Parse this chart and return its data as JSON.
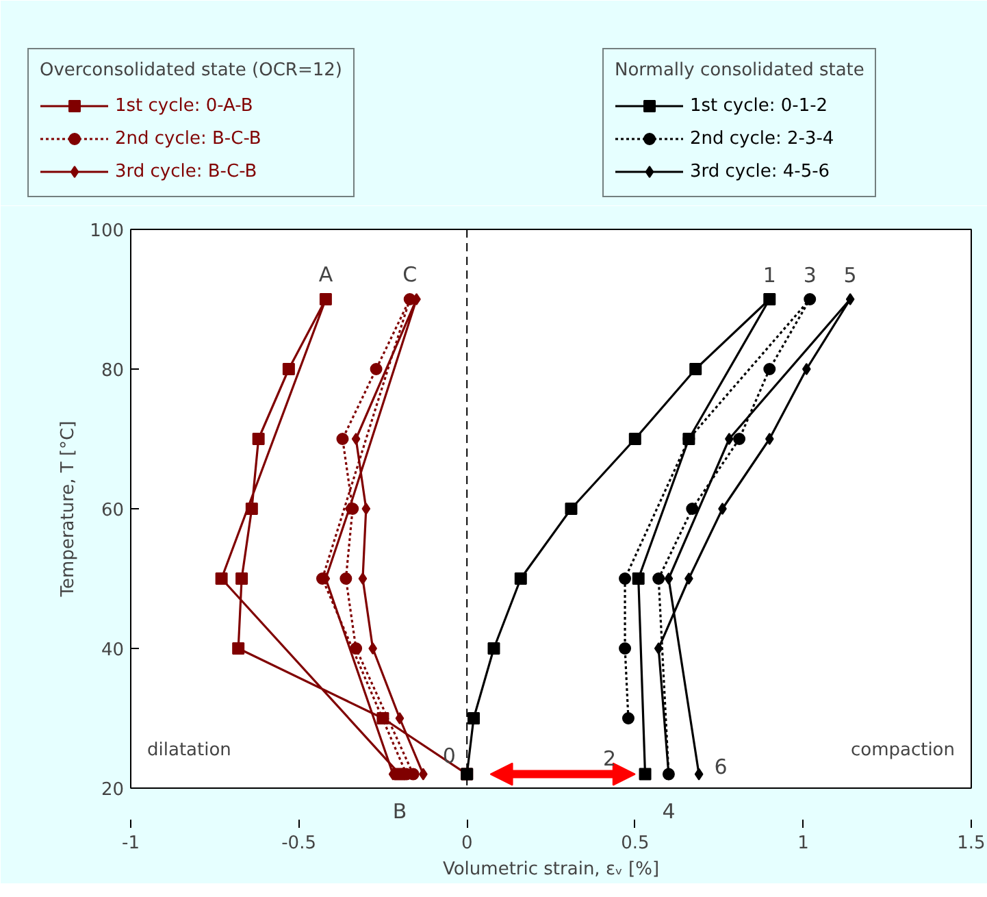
{
  "chart_data": {
    "type": "line",
    "xlabel": "Volumetric strain, εᵥ [%]",
    "ylabel": "Temperature, T [°C]",
    "xlim": [
      -1,
      1.5
    ],
    "ylim": [
      20,
      100
    ],
    "xticks": [
      -1,
      -0.5,
      0,
      0.5,
      1,
      1.5
    ],
    "yticks": [
      20,
      40,
      60,
      80,
      100
    ],
    "grid": false,
    "legend": "top",
    "legend_title": [
      "Overconsolidated state (OCR=12)",
      "Normally consolidated state"
    ],
    "ref_lines": [
      {
        "axis": "x",
        "value": 0,
        "line_style": "dashed",
        "color": "#000000"
      }
    ],
    "series": [
      {
        "name": "1st cycle: 0-A-B",
        "color": "#800000",
        "marker": "square",
        "line_style": "solid",
        "x": [
          0,
          -0.25,
          -0.68,
          -0.67,
          -0.64,
          -0.62,
          -0.53,
          -0.42,
          -0.73,
          -0.2
        ],
        "values": [
          22,
          30,
          40,
          50,
          60,
          70,
          80,
          90,
          50,
          22
        ]
      },
      {
        "name": "2nd cycle: B-C-B",
        "color": "#800000",
        "marker": "circle",
        "line_style": "dotted",
        "x": [
          -0.16,
          -0.33,
          -0.36,
          -0.34,
          -0.37,
          -0.27,
          -0.17,
          -0.43,
          -0.18
        ],
        "values": [
          22,
          40,
          50,
          60,
          70,
          80,
          90,
          50,
          22
        ]
      },
      {
        "name": "3rd cycle: B-C-B",
        "color": "#800000",
        "marker": "diamond",
        "line_style": "solid",
        "x": [
          -0.13,
          -0.2,
          -0.28,
          -0.31,
          -0.3,
          -0.33,
          -0.15,
          -0.35,
          -0.42,
          -0.22
        ],
        "values": [
          22,
          30,
          40,
          50,
          60,
          70,
          90,
          60,
          50,
          22
        ]
      },
      {
        "name": "1st cycle: 0-1-2",
        "color": "#000000",
        "marker": "square",
        "line_style": "solid",
        "x": [
          0,
          0.02,
          0.08,
          0.16,
          0.31,
          0.5,
          0.68,
          0.9,
          0.66,
          0.51,
          0.53
        ],
        "values": [
          22,
          30,
          40,
          50,
          60,
          70,
          80,
          90,
          70,
          50,
          22
        ]
      },
      {
        "name": "2nd cycle: 2-3-4",
        "color": "#000000",
        "marker": "circle",
        "line_style": "dotted",
        "x": [
          0.48,
          0.47,
          0.47,
          0.66,
          1.02,
          0.9,
          0.81,
          0.67,
          0.57,
          0.6
        ],
        "values": [
          30,
          40,
          50,
          70,
          90,
          80,
          70,
          60,
          50,
          22
        ]
      },
      {
        "name": "3rd cycle: 4-5-6",
        "color": "#000000",
        "marker": "diamond",
        "line_style": "solid",
        "x": [
          0.6,
          0.57,
          0.66,
          0.76,
          0.9,
          1.01,
          1.14,
          0.78,
          0.6,
          0.69
        ],
        "values": [
          22,
          40,
          50,
          60,
          70,
          80,
          90,
          70,
          50,
          22
        ]
      }
    ],
    "annotations": [
      "dilatation",
      "compaction",
      {
        "text": "A",
        "x": -0.42,
        "y": 90
      },
      {
        "text": "C",
        "x": -0.17,
        "y": 90
      },
      {
        "text": "1",
        "x": 0.9,
        "y": 90
      },
      {
        "text": "3",
        "x": 1.02,
        "y": 90
      },
      {
        "text": "5",
        "x": 1.14,
        "y": 90
      },
      {
        "text": "0",
        "x": 0,
        "y": 22
      },
      {
        "text": "2",
        "x": 0.53,
        "y": 22
      },
      {
        "text": "6",
        "x": 0.69,
        "y": 22
      },
      {
        "text": "B",
        "x": -0.2,
        "y": 22
      },
      {
        "text": "4",
        "x": 0.6,
        "y": 22
      }
    ]
  }
}
